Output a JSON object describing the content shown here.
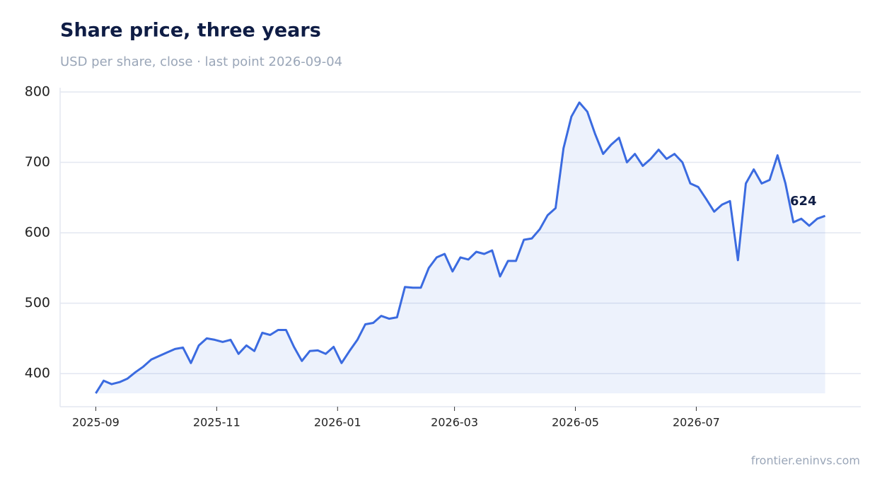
{
  "chart_data": {
    "type": "line",
    "title": "Share price, three years",
    "subtitle": "USD per share, close · last point 2026-09-04",
    "source": "frontier.eninvs.com",
    "x": [
      "2025-09-01",
      "2025-09-05",
      "2025-09-09",
      "2025-09-13",
      "2025-09-17",
      "2025-09-21",
      "2025-09-25",
      "2025-09-29",
      "2025-10-03",
      "2025-10-07",
      "2025-10-11",
      "2025-10-15",
      "2025-10-19",
      "2025-10-23",
      "2025-10-27",
      "2025-10-31",
      "2025-11-04",
      "2025-11-08",
      "2025-11-12",
      "2025-11-16",
      "2025-11-20",
      "2025-11-24",
      "2025-11-28",
      "2025-12-02",
      "2025-12-06",
      "2025-12-10",
      "2025-12-14",
      "2025-12-18",
      "2025-12-22",
      "2025-12-26",
      "2025-12-30",
      "2026-01-03",
      "2026-01-07",
      "2026-01-11",
      "2026-01-15",
      "2026-01-19",
      "2026-01-23",
      "2026-01-27",
      "2026-01-31",
      "2026-02-04",
      "2026-02-08",
      "2026-02-12",
      "2026-02-16",
      "2026-02-20",
      "2026-02-24",
      "2026-02-28",
      "2026-03-04",
      "2026-03-08",
      "2026-03-12",
      "2026-03-16",
      "2026-03-20",
      "2026-03-24",
      "2026-03-28",
      "2026-04-01",
      "2026-04-05",
      "2026-04-09",
      "2026-04-13",
      "2026-04-17",
      "2026-04-21",
      "2026-04-25",
      "2026-04-29",
      "2026-05-03",
      "2026-05-07",
      "2026-05-11",
      "2026-05-15",
      "2026-05-19",
      "2026-05-23",
      "2026-05-27",
      "2026-05-31",
      "2026-06-04",
      "2026-06-08",
      "2026-06-12",
      "2026-06-16",
      "2026-06-20",
      "2026-06-24",
      "2026-06-28",
      "2026-07-02",
      "2026-07-06",
      "2026-07-10",
      "2026-07-14",
      "2026-07-18",
      "2026-07-22",
      "2026-07-26",
      "2026-07-30",
      "2026-08-03",
      "2026-08-07",
      "2026-08-11",
      "2026-08-15",
      "2026-08-19",
      "2026-08-23",
      "2026-08-27",
      "2026-08-31",
      "2026-09-04"
    ],
    "series": [
      {
        "name": "Share price",
        "color": "#3b6be0",
        "values": [
          372,
          390,
          385,
          388,
          393,
          402,
          410,
          420,
          425,
          430,
          435,
          437,
          415,
          440,
          450,
          448,
          445,
          448,
          428,
          440,
          432,
          458,
          455,
          462,
          462,
          438,
          418,
          432,
          433,
          428,
          438,
          415,
          432,
          448,
          470,
          472,
          482,
          478,
          480,
          523,
          522,
          522,
          550,
          565,
          570,
          545,
          565,
          562,
          573,
          570,
          575,
          538,
          560,
          560,
          590,
          592,
          605,
          625,
          635,
          720,
          765,
          785,
          772,
          740,
          712,
          725,
          735,
          700,
          712,
          695,
          705,
          718,
          705,
          712,
          700,
          670,
          665,
          648,
          630,
          640,
          645,
          561,
          670,
          690,
          670,
          675,
          710,
          670,
          615,
          620,
          610,
          620,
          624
        ]
      }
    ],
    "xlim": [
      "2025-08-14",
      "2026-09-22"
    ],
    "xticks": [
      {
        "value": "2025-09-01",
        "label": "2025-09"
      },
      {
        "value": "2025-11-01",
        "label": "2025-11"
      },
      {
        "value": "2026-01-01",
        "label": "2026-01"
      },
      {
        "value": "2026-03-01",
        "label": "2026-03"
      },
      {
        "value": "2026-05-01",
        "label": "2026-05"
      },
      {
        "value": "2026-07-01",
        "label": "2026-07"
      }
    ],
    "ylim": [
      353,
      806
    ],
    "yticks": [
      400,
      500,
      600,
      700,
      800
    ],
    "grid": true
  }
}
